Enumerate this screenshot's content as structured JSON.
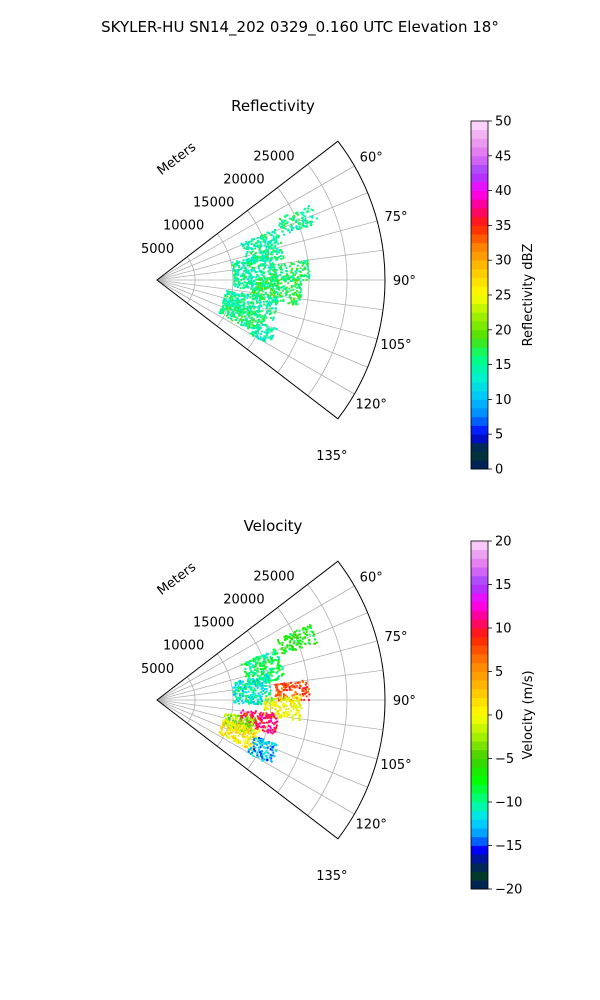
{
  "figure": {
    "title": "SKYLER-HU  SN14_202  0329_0.160 UTC Elevation 18°"
  },
  "chart_data": [
    {
      "type": "polar-sector",
      "title": "Reflectivity",
      "radial_axis_label": "Meters",
      "radial_ticks": [
        "5000",
        "10000",
        "15000",
        "20000",
        "25000"
      ],
      "radial_tick_values": [
        5000,
        10000,
        15000,
        20000,
        25000
      ],
      "radial_range": [
        0,
        30000
      ],
      "angular_range_deg": [
        52.5,
        127.5
      ],
      "angular_ticks": [
        "60°",
        "75°",
        "90°",
        "105°",
        "120°",
        "135°"
      ],
      "angular_tick_values": [
        60,
        75,
        90,
        105,
        120,
        135
      ],
      "grid": true,
      "colorbar": {
        "label": "Reflectivity dBZ",
        "range": [
          0,
          50
        ],
        "ticks": [
          "0",
          "5",
          "10",
          "15",
          "20",
          "25",
          "30",
          "35",
          "40",
          "45",
          "50"
        ],
        "tick_values": [
          0,
          5,
          10,
          15,
          20,
          25,
          30,
          35,
          40,
          45,
          50
        ],
        "stops": [
          {
            "v": 0,
            "color": "#001a66"
          },
          {
            "v": 2.5,
            "color": "#003a2a"
          },
          {
            "v": 3.5,
            "color": "#00206b"
          },
          {
            "v": 5,
            "color": "#0000ff"
          },
          {
            "v": 7.5,
            "color": "#0080ff"
          },
          {
            "v": 10,
            "color": "#00c0ff"
          },
          {
            "v": 13,
            "color": "#00f0d0"
          },
          {
            "v": 16,
            "color": "#00ff80"
          },
          {
            "v": 19,
            "color": "#50e000"
          },
          {
            "v": 22,
            "color": "#a0f000"
          },
          {
            "v": 25,
            "color": "#ffff00"
          },
          {
            "v": 29,
            "color": "#ffc000"
          },
          {
            "v": 32,
            "color": "#ff8000"
          },
          {
            "v": 35,
            "color": "#ff2000"
          },
          {
            "v": 37.5,
            "color": "#ff0080"
          },
          {
            "v": 40,
            "color": "#ff00ff"
          },
          {
            "v": 42.5,
            "color": "#a040ff"
          },
          {
            "v": 45,
            "color": "#e070f0"
          },
          {
            "v": 48,
            "color": "#f0b0f0"
          },
          {
            "v": 50,
            "color": "#ffe0ff"
          }
        ]
      },
      "echo_regions": [
        {
          "az": [
            63,
            70
          ],
          "r": [
            17500,
            22500
          ],
          "value": 15
        },
        {
          "az": [
            66,
            80
          ],
          "r": [
            12000,
            17000
          ],
          "value": 15
        },
        {
          "az": [
            76,
            95
          ],
          "r": [
            10000,
            15500
          ],
          "value": 15
        },
        {
          "az": [
            82,
            90
          ],
          "r": [
            15000,
            20000
          ],
          "value": 16
        },
        {
          "az": [
            88,
            100
          ],
          "r": [
            12500,
            19000
          ],
          "value": 17
        },
        {
          "az": [
            98,
            110
          ],
          "r": [
            9000,
            16000
          ],
          "value": 15
        },
        {
          "az": [
            108,
            118
          ],
          "r": [
            9000,
            15000
          ],
          "value": 16
        },
        {
          "az": [
            112,
            120
          ],
          "r": [
            14000,
            17000
          ],
          "value": 14
        }
      ]
    },
    {
      "type": "polar-sector",
      "title": "Velocity",
      "radial_axis_label": "Meters",
      "radial_ticks": [
        "5000",
        "10000",
        "15000",
        "20000",
        "25000"
      ],
      "radial_tick_values": [
        5000,
        10000,
        15000,
        20000,
        25000
      ],
      "radial_range": [
        0,
        30000
      ],
      "angular_range_deg": [
        52.5,
        127.5
      ],
      "angular_ticks": [
        "60°",
        "75°",
        "90°",
        "105°",
        "120°",
        "135°"
      ],
      "angular_tick_values": [
        60,
        75,
        90,
        105,
        120,
        135
      ],
      "grid": true,
      "colorbar": {
        "label": "Velocity (m/s)",
        "range": [
          -20,
          20
        ],
        "ticks": [
          "−20",
          "−15",
          "−10",
          "−5",
          "0",
          "5",
          "10",
          "15",
          "20"
        ],
        "tick_values": [
          -20,
          -15,
          -10,
          -5,
          0,
          5,
          10,
          15,
          20
        ],
        "stops": [
          {
            "v": -20,
            "color": "#001a66"
          },
          {
            "v": -18.5,
            "color": "#003a2a"
          },
          {
            "v": -17,
            "color": "#00206b"
          },
          {
            "v": -15.5,
            "color": "#0000ff"
          },
          {
            "v": -14,
            "color": "#0090ff"
          },
          {
            "v": -12,
            "color": "#00e0ff"
          },
          {
            "v": -10,
            "color": "#00ff90"
          },
          {
            "v": -7.5,
            "color": "#00ff00"
          },
          {
            "v": -5,
            "color": "#40d000"
          },
          {
            "v": -2.5,
            "color": "#a0f000"
          },
          {
            "v": 0,
            "color": "#ffff00"
          },
          {
            "v": 3,
            "color": "#ffc000"
          },
          {
            "v": 6,
            "color": "#ff8000"
          },
          {
            "v": 9,
            "color": "#ff2000"
          },
          {
            "v": 11,
            "color": "#ff0080"
          },
          {
            "v": 13,
            "color": "#ff00ff"
          },
          {
            "v": 15,
            "color": "#a040ff"
          },
          {
            "v": 17,
            "color": "#e070f0"
          },
          {
            "v": 19,
            "color": "#f0b0f0"
          },
          {
            "v": 20,
            "color": "#ffe0ff"
          }
        ]
      },
      "echo_regions": [
        {
          "az": [
            63,
            70
          ],
          "r": [
            17500,
            22500
          ],
          "value": -7
        },
        {
          "az": [
            66,
            80
          ],
          "r": [
            12000,
            17000
          ],
          "value": -9
        },
        {
          "az": [
            76,
            92
          ],
          "r": [
            10000,
            15000
          ],
          "value": -11
        },
        {
          "az": [
            82,
            90
          ],
          "r": [
            15500,
            20000
          ],
          "value": 8
        },
        {
          "az": [
            88,
            98
          ],
          "r": [
            14000,
            19000
          ],
          "value": 0
        },
        {
          "az": [
            96,
            106
          ],
          "r": [
            11000,
            16000
          ],
          "value": 10
        },
        {
          "az": [
            100,
            110
          ],
          "r": [
            9000,
            13000
          ],
          "value": -3
        },
        {
          "az": [
            106,
            118
          ],
          "r": [
            9000,
            14000
          ],
          "value": 1
        },
        {
          "az": [
            110,
            120
          ],
          "r": [
            13500,
            17000
          ],
          "value": -13
        }
      ]
    }
  ]
}
